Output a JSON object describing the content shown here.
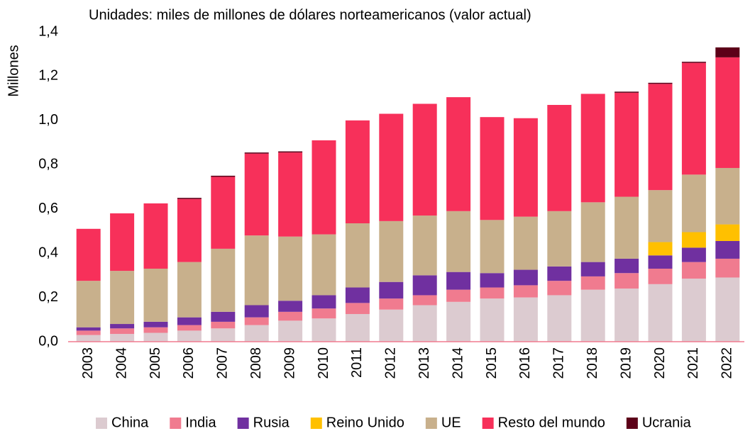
{
  "chart_data": {
    "type": "stacked-bar",
    "title": "Unidades: miles de millones de dólares norteamericanos (valor actual)",
    "y_axis_label": "Millones",
    "categories": [
      "2003",
      "2004",
      "2005",
      "2006",
      "2007",
      "2008",
      "2009",
      "2010",
      "2011",
      "2012",
      "2013",
      "2014",
      "2015",
      "2016",
      "2017",
      "2018",
      "2019",
      "2020",
      "2021",
      "2022"
    ],
    "series": [
      {
        "name": "China",
        "color": "#dccbd0",
        "values": [
          0.03,
          0.035,
          0.04,
          0.05,
          0.06,
          0.075,
          0.095,
          0.105,
          0.125,
          0.145,
          0.165,
          0.18,
          0.195,
          0.2,
          0.21,
          0.235,
          0.24,
          0.26,
          0.285,
          0.29
        ]
      },
      {
        "name": "India",
        "color": "#f07b8f",
        "values": [
          0.02,
          0.025,
          0.025,
          0.025,
          0.03,
          0.035,
          0.04,
          0.045,
          0.05,
          0.05,
          0.045,
          0.055,
          0.05,
          0.055,
          0.065,
          0.06,
          0.07,
          0.07,
          0.075,
          0.085
        ]
      },
      {
        "name": "Rusia",
        "color": "#7030a0",
        "values": [
          0.015,
          0.02,
          0.025,
          0.035,
          0.045,
          0.055,
          0.05,
          0.06,
          0.07,
          0.075,
          0.09,
          0.08,
          0.065,
          0.07,
          0.065,
          0.065,
          0.065,
          0.06,
          0.065,
          0.08
        ]
      },
      {
        "name": "Reino Unido",
        "color": "#ffc000",
        "values": [
          0,
          0,
          0,
          0,
          0,
          0,
          0,
          0,
          0,
          0,
          0,
          0,
          0,
          0,
          0,
          0,
          0,
          0.06,
          0.07,
          0.075
        ]
      },
      {
        "name": "UE",
        "color": "#c8b08c",
        "values": [
          0.21,
          0.24,
          0.24,
          0.25,
          0.285,
          0.315,
          0.29,
          0.275,
          0.29,
          0.275,
          0.27,
          0.275,
          0.24,
          0.24,
          0.25,
          0.27,
          0.28,
          0.235,
          0.26,
          0.255
        ]
      },
      {
        "name": "Resto del mundo",
        "color": "#f7305a",
        "values": [
          0.235,
          0.26,
          0.295,
          0.285,
          0.325,
          0.37,
          0.38,
          0.425,
          0.465,
          0.485,
          0.505,
          0.515,
          0.465,
          0.445,
          0.48,
          0.49,
          0.47,
          0.48,
          0.505,
          0.5
        ]
      },
      {
        "name": "Ucrania",
        "color": "#5c0018",
        "values": [
          0,
          0,
          0,
          0.005,
          0.005,
          0.005,
          0.005,
          0,
          0,
          0,
          0,
          0,
          0,
          0,
          0,
          0,
          0.005,
          0.005,
          0.005,
          0.045
        ]
      }
    ],
    "ylim": [
      0,
      1.4
    ],
    "yticks": [
      {
        "value": 0,
        "label": "0,0"
      },
      {
        "value": 0.2,
        "label": "0,2"
      },
      {
        "value": 0.4,
        "label": "0,4"
      },
      {
        "value": 0.6,
        "label": "0,6"
      },
      {
        "value": 0.8,
        "label": "0,8"
      },
      {
        "value": 1.0,
        "label": "1,0"
      },
      {
        "value": 1.2,
        "label": "1,2"
      },
      {
        "value": 1.4,
        "label": "1,4"
      }
    ],
    "grid": false,
    "legend": "bottom"
  }
}
